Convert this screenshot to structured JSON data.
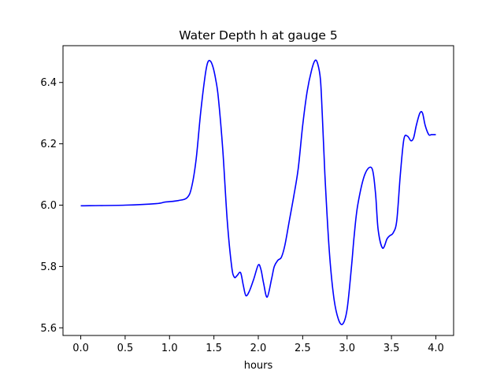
{
  "chart_data": {
    "type": "line",
    "title": "Water Depth h at gauge 5",
    "xlabel": "hours",
    "ylabel": "",
    "xlim": [
      -0.2,
      4.2
    ],
    "ylim": [
      5.575,
      6.52
    ],
    "xticks": [
      0.0,
      0.5,
      1.0,
      1.5,
      2.0,
      2.5,
      3.0,
      3.5,
      4.0
    ],
    "xtick_labels": [
      "0.0",
      "0.5",
      "1.0",
      "1.5",
      "2.0",
      "2.5",
      "3.0",
      "3.5",
      "4.0"
    ],
    "yticks": [
      5.6,
      5.8,
      6.0,
      6.2,
      6.4
    ],
    "ytick_labels": [
      "5.6",
      "5.8",
      "6.0",
      "6.2",
      "6.4"
    ],
    "grid": false,
    "series": [
      {
        "name": "",
        "color": "#0000ff",
        "x": [
          0.0,
          0.5,
          0.85,
          0.95,
          1.1,
          1.2,
          1.25,
          1.3,
          1.35,
          1.4,
          1.43,
          1.46,
          1.49,
          1.52,
          1.55,
          1.6,
          1.65,
          1.7,
          1.73,
          1.76,
          1.8,
          1.83,
          1.86,
          1.9,
          1.95,
          2.0,
          2.03,
          2.06,
          2.1,
          2.15,
          2.18,
          2.22,
          2.26,
          2.3,
          2.35,
          2.4,
          2.45,
          2.5,
          2.55,
          2.6,
          2.64,
          2.67,
          2.7,
          2.72,
          2.75,
          2.8,
          2.85,
          2.9,
          2.95,
          3.0,
          3.05,
          3.08,
          3.12,
          3.2,
          3.28,
          3.32,
          3.35,
          3.4,
          3.45,
          3.48,
          3.52,
          3.56,
          3.6,
          3.64,
          3.68,
          3.72,
          3.75,
          3.78,
          3.82,
          3.85,
          3.88,
          3.92,
          3.95,
          3.98,
          4.0
        ],
        "y": [
          5.998,
          6.0,
          6.005,
          6.01,
          6.015,
          6.025,
          6.06,
          6.15,
          6.3,
          6.42,
          6.465,
          6.47,
          6.45,
          6.41,
          6.35,
          6.18,
          5.95,
          5.8,
          5.765,
          5.77,
          5.78,
          5.74,
          5.705,
          5.72,
          5.76,
          5.805,
          5.79,
          5.745,
          5.7,
          5.76,
          5.8,
          5.82,
          5.83,
          5.87,
          5.95,
          6.03,
          6.12,
          6.26,
          6.37,
          6.44,
          6.472,
          6.46,
          6.41,
          6.3,
          6.1,
          5.85,
          5.7,
          5.63,
          5.612,
          5.66,
          5.8,
          5.9,
          6.0,
          6.1,
          6.12,
          6.04,
          5.92,
          5.86,
          5.89,
          5.9,
          5.91,
          5.95,
          6.1,
          6.215,
          6.225,
          6.21,
          6.22,
          6.26,
          6.3,
          6.3,
          6.26,
          6.23,
          6.23,
          6.23,
          6.23
        ]
      }
    ]
  }
}
